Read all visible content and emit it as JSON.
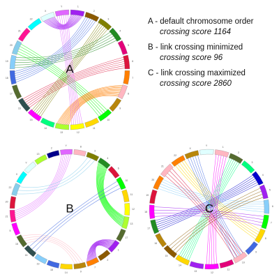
{
  "legend": [
    {
      "desc": "A - default chromosome order",
      "score": "crossing score 1164"
    },
    {
      "desc": "B - link crossing minimized",
      "score": "crossing score 96"
    },
    {
      "desc": "C - link crossing maximized",
      "score": "crossing score 2860"
    }
  ],
  "panels": [
    {
      "letter": "A",
      "segment_colors": [
        "#a020f0",
        "#8b5a00",
        "#7f7f00",
        "#228b22",
        "#e3007a",
        "#dc143c",
        "#ff7f00",
        "#ffb6c1",
        "#b8860b",
        "#00ff00",
        "#ffd700",
        "#ffff00",
        "#adff2f",
        "#00ff7f",
        "#ff00ff",
        "#2f4f4f",
        "#556b2f",
        "#4169e1",
        "#87cefa",
        "#87ceeb",
        "#ff1493",
        "#00ffff",
        "#e0ffff",
        "#e066ff"
      ],
      "labels": [
        "1",
        "2",
        "3",
        "4",
        "5",
        "6",
        "7",
        "8",
        "9",
        "10",
        "11",
        "12",
        "13",
        "14",
        "15",
        "16",
        "17",
        "18",
        "19",
        "20",
        "21",
        "22",
        "X",
        "Y"
      ],
      "links": [
        {
          "from": 0,
          "to": 22,
          "color": "#a020f0",
          "count": 12
        },
        {
          "from": 5,
          "to": 15,
          "color": "#dc143c",
          "count": 6
        },
        {
          "from": 2,
          "to": 14,
          "color": "#7f7f00",
          "count": 6
        },
        {
          "from": 9,
          "to": 19,
          "color": "#00ff00",
          "count": 5
        },
        {
          "from": 7,
          "to": 12,
          "color": "#ff7f00",
          "count": 12
        },
        {
          "from": 17,
          "to": 1,
          "color": "#4169e1",
          "count": 6
        },
        {
          "from": 3,
          "to": 18,
          "color": "#228b22",
          "count": 5
        },
        {
          "from": 11,
          "to": 23,
          "color": "#e066ff",
          "count": 6
        }
      ]
    },
    {
      "letter": "B",
      "segment_colors": [
        "#e066ff",
        "#ffb6c1",
        "#7f7f00",
        "#228b22",
        "#dc143c",
        "#00ff00",
        "#ffd700",
        "#ffff00",
        "#adff2f",
        "#556b2f",
        "#a020f0",
        "#8b5a00",
        "#ff7f00",
        "#b8860b",
        "#ffd700",
        "#4169e1",
        "#87cefa",
        "#2f4f4f",
        "#556b2f",
        "#ff00ff",
        "#ff1493",
        "#dc143c",
        "#87ceeb",
        "#00ffff",
        "#e0ffff",
        "#adff2f",
        "#00008b"
      ],
      "labels": [
        "Y",
        "8",
        "3",
        "4",
        "6",
        "10",
        "11",
        "12",
        "13",
        "17",
        "1",
        "2",
        "7",
        "9",
        "14",
        "18",
        "19",
        "16",
        "15",
        "5",
        "21",
        "20",
        "22",
        "X",
        "Y",
        "13",
        "2"
      ],
      "links": [
        {
          "from": 3,
          "to": 8,
          "color": "#00ff00",
          "count": 14
        },
        {
          "from": 10,
          "to": 12,
          "color": "#a020f0",
          "count": 14
        },
        {
          "from": 13,
          "to": 18,
          "color": "#ffb6c1",
          "count": 4
        },
        {
          "from": 20,
          "to": 0,
          "color": "#e066ff",
          "count": 6
        },
        {
          "from": 17,
          "to": 5,
          "color": "#4169e1",
          "count": 3
        },
        {
          "from": 22,
          "to": 2,
          "color": "#87ceeb",
          "count": 3
        }
      ]
    },
    {
      "letter": "C",
      "segment_colors": [
        "#ffb6c1",
        "#556b2f",
        "#00ff7f",
        "#0000cd",
        "#a020f0",
        "#87cefa",
        "#00ff00",
        "#ffd700",
        "#4169e1",
        "#ffb6c1",
        "#e3007a",
        "#ff00ff",
        "#a020f0",
        "#ffd700",
        "#8b5a00",
        "#b8860b",
        "#228b22",
        "#ff00ff",
        "#dc143c",
        "#ff7f00",
        "#ffb6c1",
        "#ff7f00",
        "#b8860b",
        "#e0ffff"
      ],
      "labels": [
        "1",
        "2",
        "3",
        "4",
        "5",
        "6",
        "7",
        "8",
        "9",
        "10",
        "11",
        "12",
        "13",
        "14",
        "15",
        "16",
        "17",
        "18",
        "19",
        "20",
        "21",
        "22",
        "X",
        "Y"
      ],
      "links": [
        {
          "from": 1,
          "to": 13,
          "color": "#00ff7f",
          "count": 6
        },
        {
          "from": 3,
          "to": 16,
          "color": "#0000cd",
          "count": 6
        },
        {
          "from": 5,
          "to": 19,
          "color": "#87cefa",
          "count": 5
        },
        {
          "from": 7,
          "to": 21,
          "color": "#ffd700",
          "count": 5
        },
        {
          "from": 9,
          "to": 22,
          "color": "#4169e1",
          "count": 5
        },
        {
          "from": 11,
          "to": 0,
          "color": "#ff00ff",
          "count": 5
        },
        {
          "from": 14,
          "to": 4,
          "color": "#8b5a00",
          "count": 4
        },
        {
          "from": 17,
          "to": 6,
          "color": "#a020f0",
          "count": 4
        },
        {
          "from": 20,
          "to": 9,
          "color": "#dc143c",
          "count": 4
        }
      ]
    }
  ]
}
